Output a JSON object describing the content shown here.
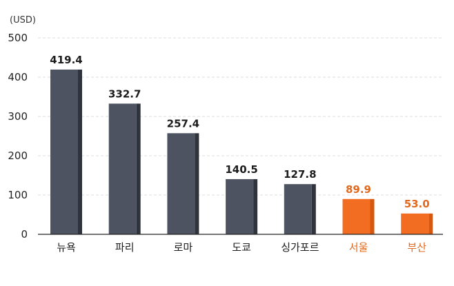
{
  "chart_data": {
    "type": "bar",
    "unit_label": "(USD)",
    "categories": [
      "뉴욕",
      "파리",
      "로마",
      "도쿄",
      "싱가포르",
      "서울",
      "부산"
    ],
    "values": [
      419.4,
      332.7,
      257.4,
      140.5,
      127.8,
      89.9,
      53.0
    ],
    "value_labels": [
      "419.4",
      "332.7",
      "257.4",
      "140.5",
      "127.8",
      "89.9",
      "53.0"
    ],
    "highlighted": [
      false,
      false,
      false,
      false,
      false,
      true,
      true
    ],
    "ylim": [
      0,
      500
    ],
    "yticks": [
      "0",
      "100",
      "200",
      "300",
      "400",
      "500"
    ],
    "ytick_values": [
      0,
      100,
      200,
      300,
      400,
      500
    ],
    "grid": true,
    "legend": "none",
    "colors": {
      "bar": "#4d5360",
      "bar_side": "#2f333b",
      "highlight": "#f26d21",
      "highlight_side": "#d65810",
      "label": "#1c1c1c",
      "highlight_label": "#e0691f",
      "grid": "#dddddd",
      "axis": "#222222"
    }
  }
}
